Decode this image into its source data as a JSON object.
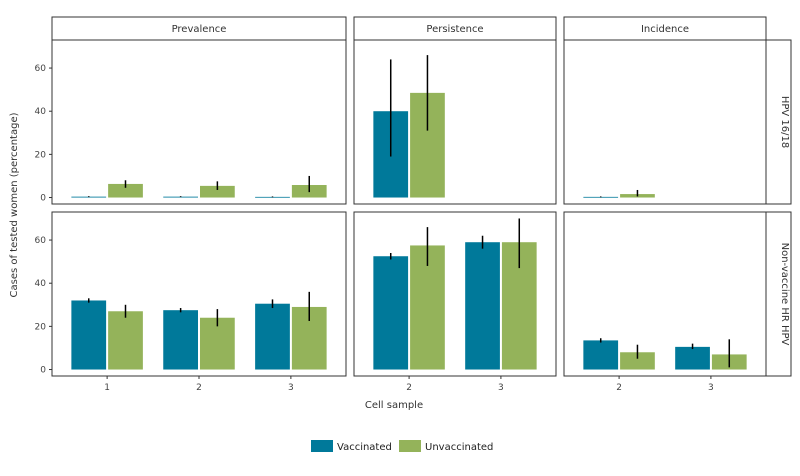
{
  "chart_data": {
    "type": "bar",
    "ylabel": "Cases of tested women (percentage)",
    "xlabel": "Cell sample",
    "ylim": [
      -3,
      73
    ],
    "yticks": [
      0,
      20,
      40,
      60
    ],
    "columns": [
      "Prevalence",
      "Persistence",
      "Incidence"
    ],
    "rows": [
      "HPV 16/18",
      "Non-vaccine HR HPV"
    ],
    "x_categories": {
      "Prevalence": [
        "1",
        "2",
        "3"
      ],
      "Persistence": [
        "2",
        "3"
      ],
      "Incidence": [
        "2",
        "3"
      ]
    },
    "series": [
      {
        "name": "Vaccinated",
        "color": "#00799a"
      },
      {
        "name": "Unvaccinated",
        "color": "#94b35a"
      }
    ],
    "panels": [
      {
        "row": "HPV 16/18",
        "column": "Prevalence",
        "vaccinated": [
          {
            "value": 0.4,
            "lo": 0.2,
            "hi": 0.6
          },
          {
            "value": 0.4,
            "lo": 0.2,
            "hi": 0.6
          },
          {
            "value": 0.3,
            "lo": 0.1,
            "hi": 0.5
          }
        ],
        "unvaccinated": [
          {
            "value": 6.3,
            "lo": 4.5,
            "hi": 8.0
          },
          {
            "value": 5.4,
            "lo": 3.5,
            "hi": 7.5
          },
          {
            "value": 5.8,
            "lo": 2.5,
            "hi": 10.0
          }
        ]
      },
      {
        "row": "HPV 16/18",
        "column": "Persistence",
        "vaccinated": [
          {
            "value": 40,
            "lo": 19,
            "hi": 64
          }
        ],
        "unvaccinated": [
          {
            "value": 48.5,
            "lo": 31,
            "hi": 66
          }
        ]
      },
      {
        "row": "HPV 16/18",
        "column": "Incidence",
        "vaccinated": [
          {
            "value": 0.3,
            "lo": 0.1,
            "hi": 0.5
          }
        ],
        "unvaccinated": [
          {
            "value": 1.6,
            "lo": 0.5,
            "hi": 3.5
          }
        ]
      },
      {
        "row": "Non-vaccine HR HPV",
        "column": "Prevalence",
        "vaccinated": [
          {
            "value": 32,
            "lo": 31,
            "hi": 33
          },
          {
            "value": 27.5,
            "lo": 26.5,
            "hi": 28.5
          },
          {
            "value": 30.5,
            "lo": 28.5,
            "hi": 32.5
          }
        ],
        "unvaccinated": [
          {
            "value": 27,
            "lo": 24,
            "hi": 30
          },
          {
            "value": 24,
            "lo": 20,
            "hi": 28
          },
          {
            "value": 29,
            "lo": 22.5,
            "hi": 36
          }
        ]
      },
      {
        "row": "Non-vaccine HR HPV",
        "column": "Persistence",
        "vaccinated": [
          {
            "value": 52.5,
            "lo": 51,
            "hi": 54
          },
          {
            "value": 59,
            "lo": 56,
            "hi": 62
          }
        ],
        "unvaccinated": [
          {
            "value": 57.5,
            "lo": 48,
            "hi": 66
          },
          {
            "value": 59,
            "lo": 47,
            "hi": 70
          }
        ]
      },
      {
        "row": "Non-vaccine HR HPV",
        "column": "Incidence",
        "vaccinated": [
          {
            "value": 13.5,
            "lo": 12.5,
            "hi": 14.5
          },
          {
            "value": 10.5,
            "lo": 9.5,
            "hi": 12
          }
        ],
        "unvaccinated": [
          {
            "value": 8,
            "lo": 5,
            "hi": 11.5
          },
          {
            "value": 7,
            "lo": 1,
            "hi": 14
          }
        ]
      }
    ]
  }
}
